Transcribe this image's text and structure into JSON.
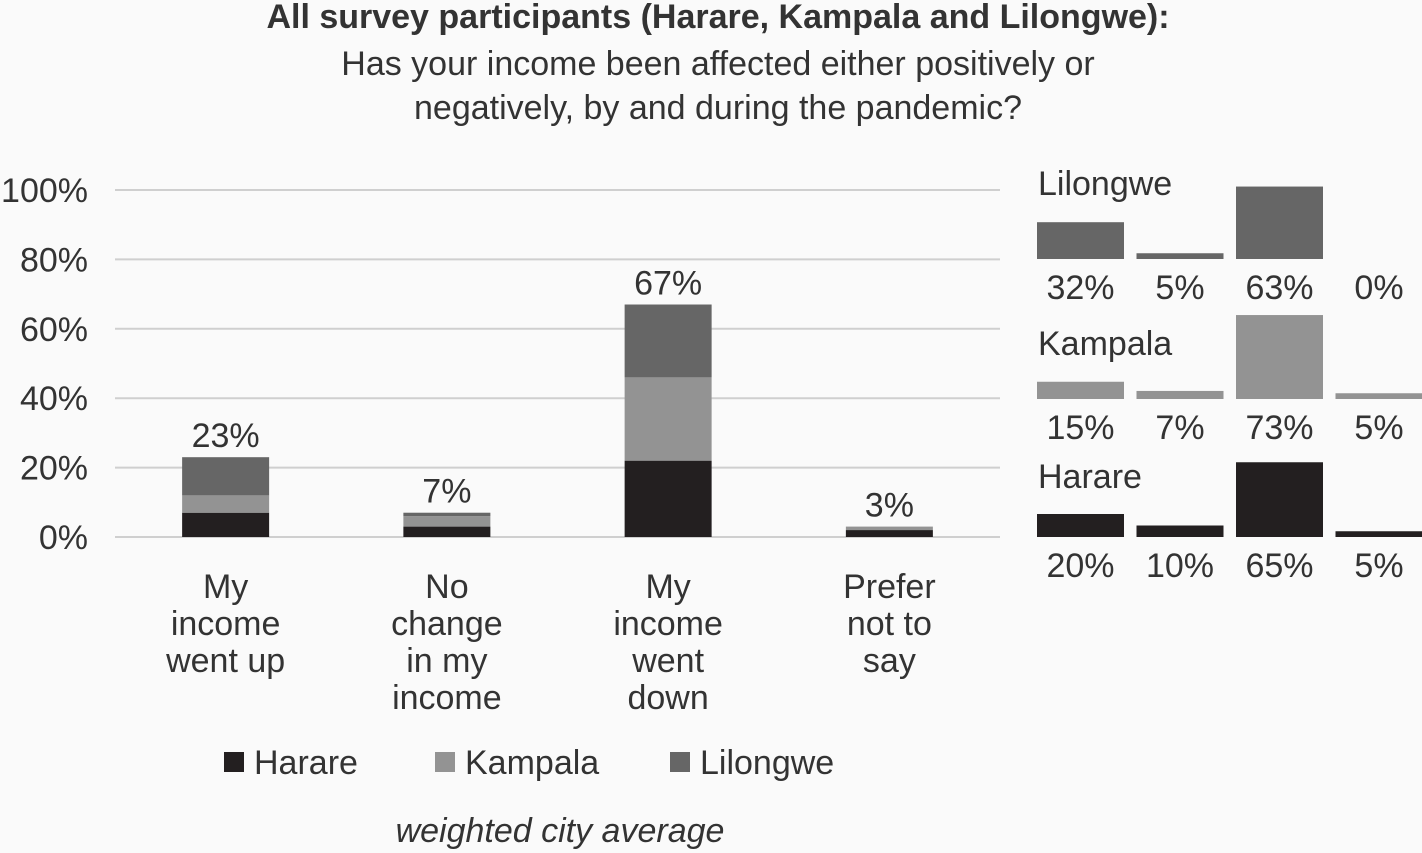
{
  "chart_data": {
    "type": "stacked_bar",
    "title": "All survey participants (Harare, Kampala and Lilongwe):",
    "subtitle": "Has your income been affected either positively or negatively, by and during the pandemic?",
    "categories": [
      "My income went up",
      "No change in my income",
      "My income went down",
      "Prefer not to say"
    ],
    "series": [
      {
        "name": "Harare",
        "color": "#231f20",
        "values": [
          7,
          3,
          22,
          2
        ]
      },
      {
        "name": "Kampala",
        "color": "#939393",
        "values": [
          5,
          3,
          24,
          1
        ]
      },
      {
        "name": "Lilongwe",
        "color": "#666666",
        "values": [
          11,
          1,
          21,
          0
        ]
      }
    ],
    "totals": {
      "values": [
        23,
        7,
        67,
        3
      ],
      "value_labels": [
        "23%",
        "7%",
        "67%",
        "3%"
      ]
    },
    "ylim": [
      0,
      100
    ],
    "yticks": [
      {
        "value": 0,
        "label": "0%"
      },
      {
        "value": 20,
        "label": "20%"
      },
      {
        "value": 40,
        "label": "40%"
      },
      {
        "value": 60,
        "label": "60%"
      },
      {
        "value": 80,
        "label": "80%"
      },
      {
        "value": 100,
        "label": "100%"
      }
    ],
    "grid": true,
    "footnote": "weighted city average",
    "panels": [
      {
        "name": "Lilongwe",
        "color": "#666666",
        "values": [
          32,
          5,
          63,
          0
        ],
        "value_labels": [
          "32%",
          "5%",
          "63%",
          "0%"
        ]
      },
      {
        "name": "Kampala",
        "color": "#939393",
        "values": [
          15,
          7,
          73,
          5
        ],
        "value_labels": [
          "15%",
          "7%",
          "73%",
          "5%"
        ]
      },
      {
        "name": "Harare",
        "color": "#231f20",
        "values": [
          20,
          10,
          65,
          5
        ],
        "value_labels": [
          "20%",
          "10%",
          "65%",
          "5%"
        ]
      }
    ]
  }
}
